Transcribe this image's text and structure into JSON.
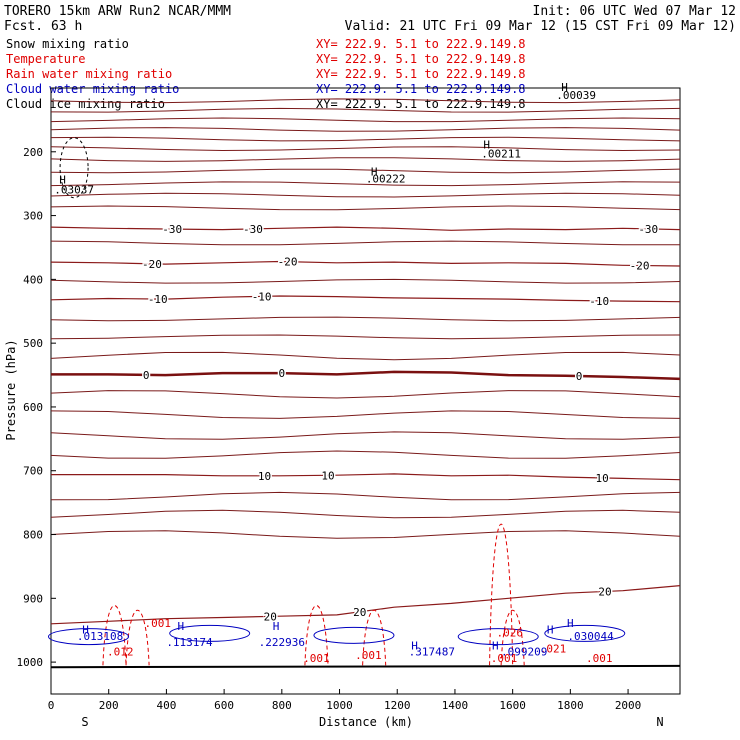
{
  "header": {
    "model": "TORERO  15km ARW   Run2    NCAR/MMM",
    "init": "Init: 06 UTC Wed 07 Mar 12",
    "fcst": "Fcst.   63 h",
    "valid": "Valid: 21 UTC Fri 09 Mar 12 (15 CST Fri 09 Mar 12)"
  },
  "legend": [
    {
      "label": "Snow mixing ratio",
      "xy": "XY= 222.9.  5.1 to 222.9.149.8",
      "color": "#000000"
    },
    {
      "label": "Temperature",
      "xy": "XY= 222.9.  5.1 to 222.9.149.8",
      "color": "#e00000"
    },
    {
      "label": "Rain water mixing ratio",
      "xy": "XY= 222.9.  5.1 to 222.9.149.8",
      "color": "#e00000"
    },
    {
      "label": "Cloud water mixing ratio",
      "xy": "XY= 222.9.  5.1 to 222.9.149.8",
      "color": "#0000c0"
    },
    {
      "label": "Cloud ice mixing ratio",
      "xy": "XY= 222.9.  5.1 to 222.9.149.8",
      "color": "#000000"
    }
  ],
  "chart_data": {
    "type": "line",
    "xlabel": "Distance (km)",
    "ylabel": "Pressure (hPa)",
    "xlim": [
      0,
      2180
    ],
    "ylim": [
      1050,
      100
    ],
    "x_ticks": [
      "0",
      "200",
      "400",
      "600",
      "800",
      "1000",
      "1200",
      "1400",
      "1600",
      "1800",
      "2000"
    ],
    "y_ticks": [
      "200",
      "300",
      "400",
      "500",
      "600",
      "700",
      "800",
      "900",
      "1000"
    ],
    "x_ends": {
      "left": "S",
      "right": "N"
    },
    "temperature_contours": [
      {
        "level": -30,
        "label": "-30",
        "pressure": [
          318,
          320,
          321,
          322,
          320,
          318,
          320,
          323,
          321,
          322,
          320,
          322
        ]
      },
      {
        "level": -20,
        "label": "-20",
        "pressure": [
          373,
          374,
          376,
          374,
          372,
          374,
          373,
          375,
          374,
          375,
          378,
          379
        ]
      },
      {
        "level": -10,
        "label": "-10",
        "pressure": [
          432,
          430,
          431,
          428,
          426,
          427,
          429,
          430,
          431,
          433,
          434,
          435
        ]
      },
      {
        "level": 0,
        "label": "0",
        "pressure": [
          549,
          549,
          550,
          547,
          547,
          549,
          545,
          546,
          550,
          551,
          553,
          556
        ]
      },
      {
        "level": 10,
        "label": "10",
        "pressure": [
          706,
          706,
          706,
          708,
          708,
          707,
          705,
          708,
          707,
          710,
          712,
          714
        ]
      },
      {
        "level": 20,
        "label": "20",
        "pressure": [
          940,
          936,
          932,
          930,
          928,
          926,
          914,
          908,
          900,
          892,
          888,
          880
        ]
      }
    ],
    "temperature_labels_x": {
      "-30": [
        420,
        700,
        2070
      ],
      "-20": [
        350,
        820,
        2040
      ],
      "-10": [
        370,
        730,
        1900
      ],
      "0": [
        330,
        800,
        1830
      ],
      "10": [
        740,
        960,
        1910
      ],
      "20": [
        760,
        1070,
        1920
      ]
    },
    "rain_labels": [
      ".001",
      ".012",
      ".001",
      ".001",
      ".026",
      ".001",
      ".021",
      ".001"
    ],
    "cloud_water_labels": [
      ".013108",
      ".113174",
      ".222936",
      ".317487",
      ".099209",
      ".030044"
    ],
    "snow_labels": [
      ".03037",
      ".00222",
      ".00211",
      ".00039"
    ],
    "ice_labels": [],
    "h_markers": [
      "H",
      "H",
      "H",
      "H",
      "H",
      "H",
      "H",
      "H",
      "H",
      "H",
      "H"
    ]
  }
}
